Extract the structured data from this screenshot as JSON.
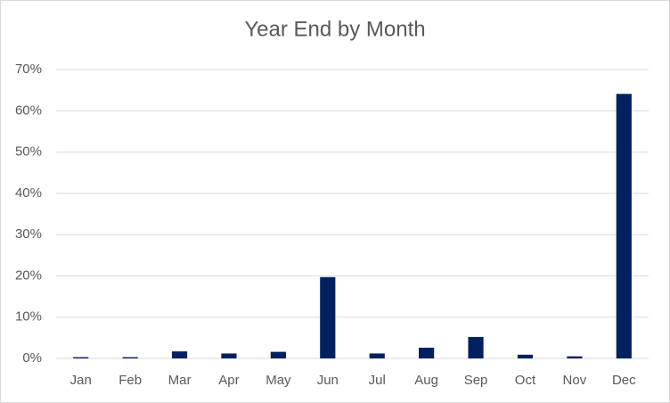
{
  "chart_data": {
    "type": "bar",
    "title": "Year End by Month",
    "categories": [
      "Jan",
      "Feb",
      "Mar",
      "Apr",
      "May",
      "Jun",
      "Jul",
      "Aug",
      "Sep",
      "Oct",
      "Nov",
      "Dec"
    ],
    "values": [
      0.3,
      0.3,
      1.7,
      1.2,
      1.6,
      19.7,
      1.2,
      2.6,
      5.2,
      0.9,
      0.5,
      64.1
    ],
    "color": "#002060",
    "ylim": [
      0,
      70
    ],
    "yticks": [
      {
        "value": 0,
        "label": "0%"
      },
      {
        "value": 10,
        "label": "10%"
      },
      {
        "value": 20,
        "label": "20%"
      },
      {
        "value": 30,
        "label": "30%"
      },
      {
        "value": 40,
        "label": "40%"
      },
      {
        "value": 50,
        "label": "50%"
      },
      {
        "value": 60,
        "label": "60%"
      },
      {
        "value": 70,
        "label": "70%"
      }
    ],
    "grid": true
  }
}
